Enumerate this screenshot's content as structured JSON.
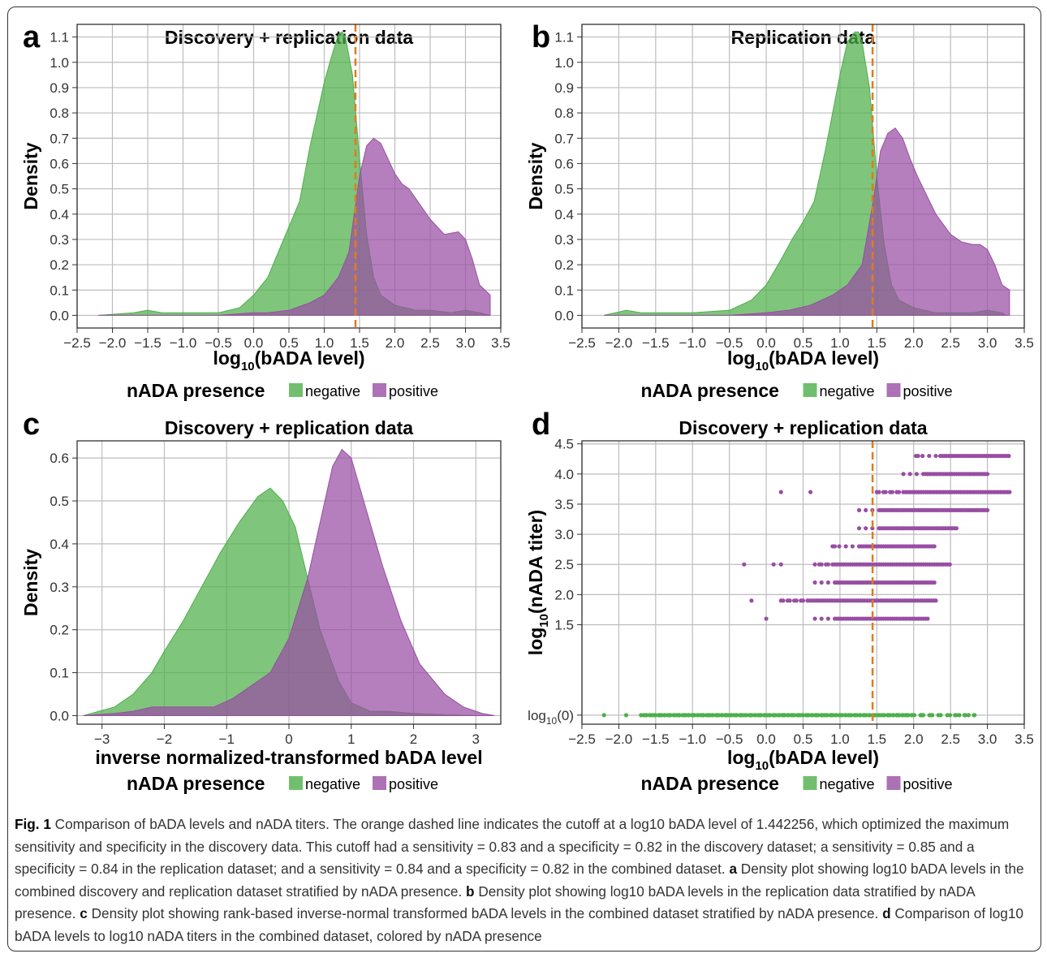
{
  "colors": {
    "negative": "#4daf4a",
    "positive": "#984ea3",
    "cutoff": "#e07b1d",
    "grid": "#bdbdbd"
  },
  "legend": {
    "title": "nADA presence",
    "negative": "negative",
    "positive": "positive"
  },
  "caption": {
    "fig_label": "Fig. 1",
    "text": "Comparison of bADA levels and nADA titers. The orange dashed line indicates the cutoff at a log10 bADA level of 1.442256, which optimized the maximum sensitivity and specificity in the discovery data. This cutoff had a sensitivity = 0.83 and a specificity = 0.82 in the discovery dataset; a sensitivity = 0.85 and a specificity = 0.84 in the replication dataset; and a sensitivity = 0.84 and a specificity = 0.82 in the combined dataset.",
    "a_label": "a",
    "a_text": "Density plot showing log10 bADA levels in the combined discovery and replication dataset stratified by nADA presence.",
    "b_label": "b",
    "b_text": "Density plot showing log10 bADA levels in the replication data stratified by nADA presence.",
    "c_label": "c",
    "c_text": "Density plot showing rank-based inverse-normal transformed bADA levels in the combined dataset stratified by nADA presence.",
    "d_label": "d",
    "d_text": "Comparison of log10 bADA levels to log10 nADA titers in the combined dataset, colored by nADA presence"
  },
  "chart_data": [
    {
      "panel": "a",
      "type": "area",
      "title": "Discovery + replication data",
      "xlabel": "log10(bADA level)",
      "ylabel": "Density",
      "xlim": [
        -2.5,
        3.5
      ],
      "ylim": [
        -0.05,
        1.15
      ],
      "xticks": [
        "-2.5",
        "-2.0",
        "-1.5",
        "-1.0",
        "-0.5",
        "0.0",
        "0.5",
        "1.0",
        "1.5",
        "2.0",
        "2.5",
        "3.0",
        "3.5"
      ],
      "yticks": [
        "0.0",
        "0.1",
        "0.2",
        "0.3",
        "0.4",
        "0.5",
        "0.6",
        "0.7",
        "0.8",
        "0.9",
        "1.0",
        "1.1"
      ],
      "cutoff": 1.442256,
      "series": [
        {
          "name": "negative",
          "x": [
            -2.2,
            -1.7,
            -1.5,
            -1.3,
            -1.0,
            -0.5,
            -0.2,
            0.0,
            0.2,
            0.35,
            0.5,
            0.65,
            0.8,
            1.0,
            1.1,
            1.2,
            1.25,
            1.3,
            1.4,
            1.5,
            1.6,
            1.7,
            1.8,
            2.0,
            2.3,
            2.5,
            2.8,
            3.0,
            3.2,
            3.35
          ],
          "y": [
            0.0,
            0.01,
            0.02,
            0.01,
            0.01,
            0.01,
            0.03,
            0.08,
            0.15,
            0.25,
            0.35,
            0.45,
            0.67,
            0.92,
            1.02,
            1.11,
            1.12,
            1.1,
            0.95,
            0.62,
            0.32,
            0.15,
            0.08,
            0.04,
            0.02,
            0.02,
            0.01,
            0.02,
            0.01,
            0.0
          ]
        },
        {
          "name": "positive",
          "x": [
            -2.2,
            -1.0,
            -0.5,
            0.0,
            0.2,
            0.5,
            0.8,
            1.0,
            1.2,
            1.35,
            1.5,
            1.6,
            1.7,
            1.8,
            1.9,
            2.0,
            2.1,
            2.2,
            2.3,
            2.5,
            2.7,
            2.9,
            3.0,
            3.1,
            3.2,
            3.35
          ],
          "y": [
            0.0,
            0.0,
            0.0,
            0.01,
            0.01,
            0.02,
            0.05,
            0.08,
            0.15,
            0.25,
            0.55,
            0.67,
            0.7,
            0.68,
            0.62,
            0.56,
            0.52,
            0.5,
            0.46,
            0.38,
            0.32,
            0.33,
            0.3,
            0.22,
            0.12,
            0.08
          ]
        }
      ]
    },
    {
      "panel": "b",
      "type": "area",
      "title": "Replication data",
      "xlabel": "log10(bADA level)",
      "ylabel": "Density",
      "xlim": [
        -2.5,
        3.5
      ],
      "ylim": [
        -0.05,
        1.15
      ],
      "xticks": [
        "-2.5",
        "-2.0",
        "-1.5",
        "-1.0",
        "-0.5",
        "0.0",
        "0.5",
        "1.0",
        "1.5",
        "2.0",
        "2.5",
        "3.0",
        "3.5"
      ],
      "yticks": [
        "0.0",
        "0.1",
        "0.2",
        "0.3",
        "0.4",
        "0.5",
        "0.6",
        "0.7",
        "0.8",
        "0.9",
        "1.0",
        "1.1"
      ],
      "cutoff": 1.442256,
      "series": [
        {
          "name": "negative",
          "x": [
            -2.2,
            -1.9,
            -1.7,
            -1.5,
            -1.0,
            -0.5,
            -0.2,
            0.0,
            0.2,
            0.35,
            0.5,
            0.65,
            0.8,
            1.0,
            1.1,
            1.2,
            1.25,
            1.3,
            1.4,
            1.5,
            1.6,
            1.7,
            1.8,
            2.0,
            2.3,
            2.5,
            2.8,
            3.0,
            3.2,
            3.25
          ],
          "y": [
            0.0,
            0.02,
            0.01,
            0.01,
            0.01,
            0.02,
            0.06,
            0.12,
            0.22,
            0.3,
            0.37,
            0.45,
            0.65,
            0.95,
            1.08,
            1.12,
            1.12,
            1.08,
            0.9,
            0.55,
            0.28,
            0.12,
            0.06,
            0.03,
            0.01,
            0.01,
            0.01,
            0.02,
            0.01,
            0.0
          ]
        },
        {
          "name": "positive",
          "x": [
            -2.2,
            -1.0,
            -0.5,
            0.0,
            0.3,
            0.6,
            0.9,
            1.1,
            1.3,
            1.45,
            1.55,
            1.65,
            1.75,
            1.85,
            1.95,
            2.05,
            2.2,
            2.3,
            2.5,
            2.65,
            2.8,
            2.9,
            3.0,
            3.1,
            3.2,
            3.3
          ],
          "y": [
            0.0,
            0.0,
            0.0,
            0.01,
            0.02,
            0.04,
            0.08,
            0.12,
            0.2,
            0.45,
            0.65,
            0.72,
            0.74,
            0.7,
            0.62,
            0.55,
            0.46,
            0.4,
            0.32,
            0.29,
            0.28,
            0.28,
            0.26,
            0.2,
            0.12,
            0.1
          ]
        }
      ]
    },
    {
      "panel": "c",
      "type": "area",
      "title": "Discovery + replication data",
      "xlabel": "inverse normalized-transformed bADA level",
      "ylabel": "Density",
      "xlim": [
        -3.4,
        3.4
      ],
      "ylim": [
        -0.02,
        0.64
      ],
      "xticks": [
        "-3",
        "-2",
        "-1",
        "0",
        "1",
        "2",
        "3"
      ],
      "yticks": [
        "0.0",
        "0.1",
        "0.2",
        "0.3",
        "0.4",
        "0.5",
        "0.6"
      ],
      "series": [
        {
          "name": "negative",
          "x": [
            -3.3,
            -2.8,
            -2.5,
            -2.2,
            -2.0,
            -1.7,
            -1.4,
            -1.1,
            -0.8,
            -0.5,
            -0.3,
            -0.1,
            0.1,
            0.3,
            0.5,
            0.8,
            1.0,
            1.3,
            1.6,
            2.0,
            2.5,
            3.0
          ],
          "y": [
            0.0,
            0.02,
            0.05,
            0.1,
            0.15,
            0.22,
            0.3,
            0.38,
            0.45,
            0.51,
            0.53,
            0.5,
            0.44,
            0.32,
            0.2,
            0.08,
            0.03,
            0.01,
            0.01,
            0.005,
            0.002,
            0.0
          ]
        },
        {
          "name": "positive",
          "x": [
            -3.3,
            -2.8,
            -2.5,
            -2.2,
            -2.0,
            -1.7,
            -1.5,
            -1.2,
            -0.9,
            -0.6,
            -0.3,
            0.0,
            0.3,
            0.5,
            0.7,
            0.85,
            1.0,
            1.2,
            1.5,
            1.8,
            2.1,
            2.5,
            2.8,
            3.1,
            3.3
          ],
          "y": [
            0.0,
            0.005,
            0.01,
            0.02,
            0.02,
            0.02,
            0.02,
            0.02,
            0.04,
            0.07,
            0.1,
            0.18,
            0.32,
            0.45,
            0.58,
            0.62,
            0.6,
            0.5,
            0.35,
            0.22,
            0.12,
            0.05,
            0.02,
            0.005,
            0.0
          ]
        }
      ]
    },
    {
      "panel": "d",
      "type": "scatter",
      "title": "Discovery + replication data",
      "xlabel": "log10(bADA level)",
      "ylabel": "log10(nADA titer)",
      "xlim": [
        -2.5,
        3.5
      ],
      "ylim": [
        -0.15,
        4.55
      ],
      "xticks": [
        "-2.5",
        "-2.0",
        "-1.5",
        "-1.0",
        "-0.5",
        "0.0",
        "0.5",
        "1.0",
        "1.5",
        "2.0",
        "2.5",
        "3.0",
        "3.5"
      ],
      "yticks": [
        "1.5",
        "2.0",
        "2.5",
        "3.0",
        "3.5",
        "4.0",
        "4.5"
      ],
      "zero_label": "log10(0)",
      "cutoff": 1.442256,
      "positive_rows": [
        {
          "y": 4.3,
          "xmin": 2.0,
          "xmax": 3.3
        },
        {
          "y": 4.0,
          "xmin": 1.8,
          "xmax": 3.0
        },
        {
          "y": 3.7,
          "xmin": 1.5,
          "xmax": 3.3
        },
        {
          "y": 3.4,
          "xmin": 1.2,
          "xmax": 3.0
        },
        {
          "y": 3.1,
          "xmin": 1.2,
          "xmax": 2.6
        },
        {
          "y": 2.8,
          "xmin": 0.9,
          "xmax": 2.3
        },
        {
          "y": 2.5,
          "xmin": 0.6,
          "xmax": 2.5
        },
        {
          "y": 2.2,
          "xmin": 0.6,
          "xmax": 2.3
        },
        {
          "y": 1.9,
          "xmin": 0.2,
          "xmax": 2.3
        },
        {
          "y": 1.6,
          "xmin": 0.6,
          "xmax": 2.2
        }
      ],
      "positive_outliers": [
        [
          0.2,
          3.7
        ],
        [
          0.6,
          3.7
        ],
        [
          -0.3,
          2.5
        ],
        [
          0.1,
          2.5
        ],
        [
          0.2,
          2.5
        ],
        [
          -0.2,
          1.9
        ],
        [
          0.0,
          1.6
        ]
      ],
      "negative_row": {
        "y": 0.0,
        "xmin": -1.7,
        "xmax": 2.9,
        "outliers": [
          -2.2,
          -1.9
        ]
      }
    }
  ]
}
